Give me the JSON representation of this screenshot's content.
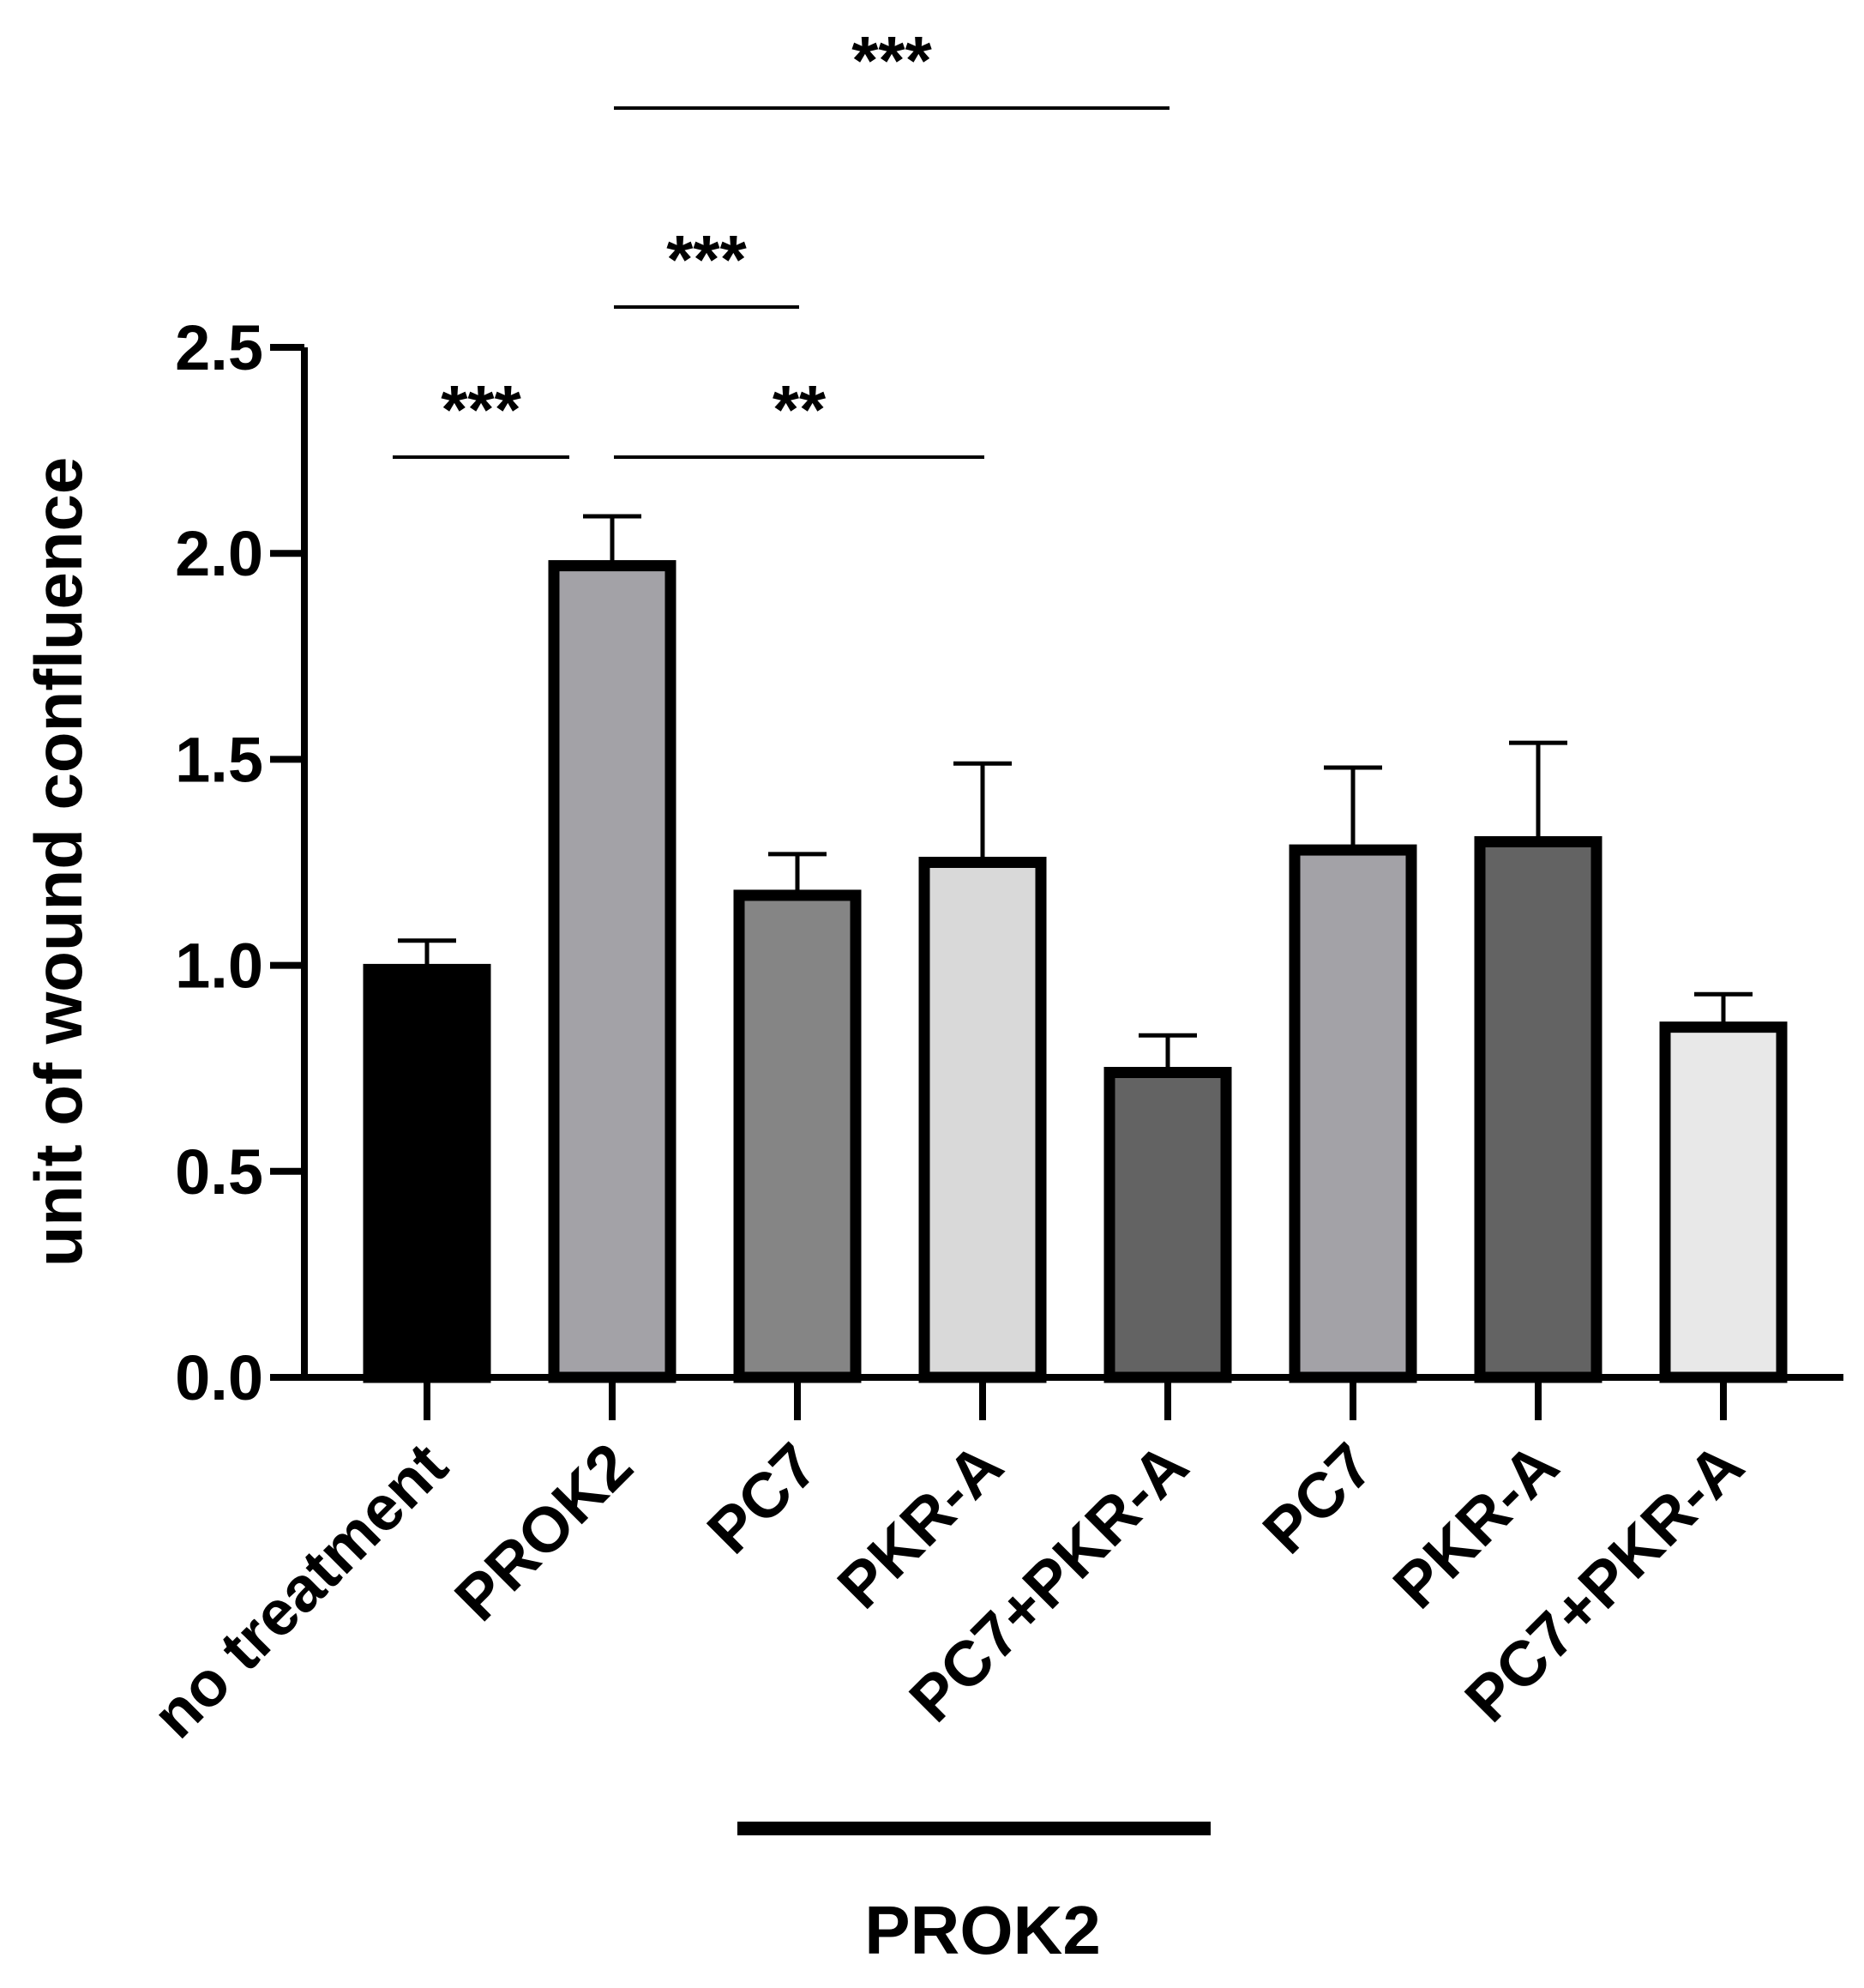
{
  "chart_data": {
    "type": "bar",
    "title": "",
    "xlabel": "",
    "ylabel": "unit of wound confluence",
    "ylim": [
      0,
      2.5
    ],
    "yticks": [
      0.0,
      0.5,
      1.0,
      1.5,
      2.0,
      2.5
    ],
    "ytick_labels": [
      "0.0",
      "0.5",
      "1.0",
      "1.5",
      "2.0",
      "2.5"
    ],
    "categories": [
      "no treatment",
      "PROK2",
      "PC7",
      "PKR-A",
      "PC7+PKR-A",
      "PC7",
      "PKR-A",
      "PC7+PKR-A"
    ],
    "values": [
      0.99,
      1.97,
      1.17,
      1.25,
      0.74,
      1.28,
      1.3,
      0.85
    ],
    "errors": [
      0.07,
      0.12,
      0.1,
      0.24,
      0.09,
      0.2,
      0.24,
      0.08
    ],
    "colors": [
      "#000000",
      "#a3a2a7",
      "#858585",
      "#d9d9d9",
      "#636363",
      "#a3a2a7",
      "#636363",
      "#e8e8e8"
    ],
    "significance": [
      {
        "from": 0,
        "to": 1,
        "label": "***"
      },
      {
        "from": 1,
        "to": 3,
        "label": "**"
      },
      {
        "from": 1,
        "to": 2,
        "label": "***"
      },
      {
        "from": 1,
        "to": 4,
        "label": "***"
      }
    ],
    "group": {
      "label": "PROK2",
      "from": 2,
      "to": 4
    }
  }
}
